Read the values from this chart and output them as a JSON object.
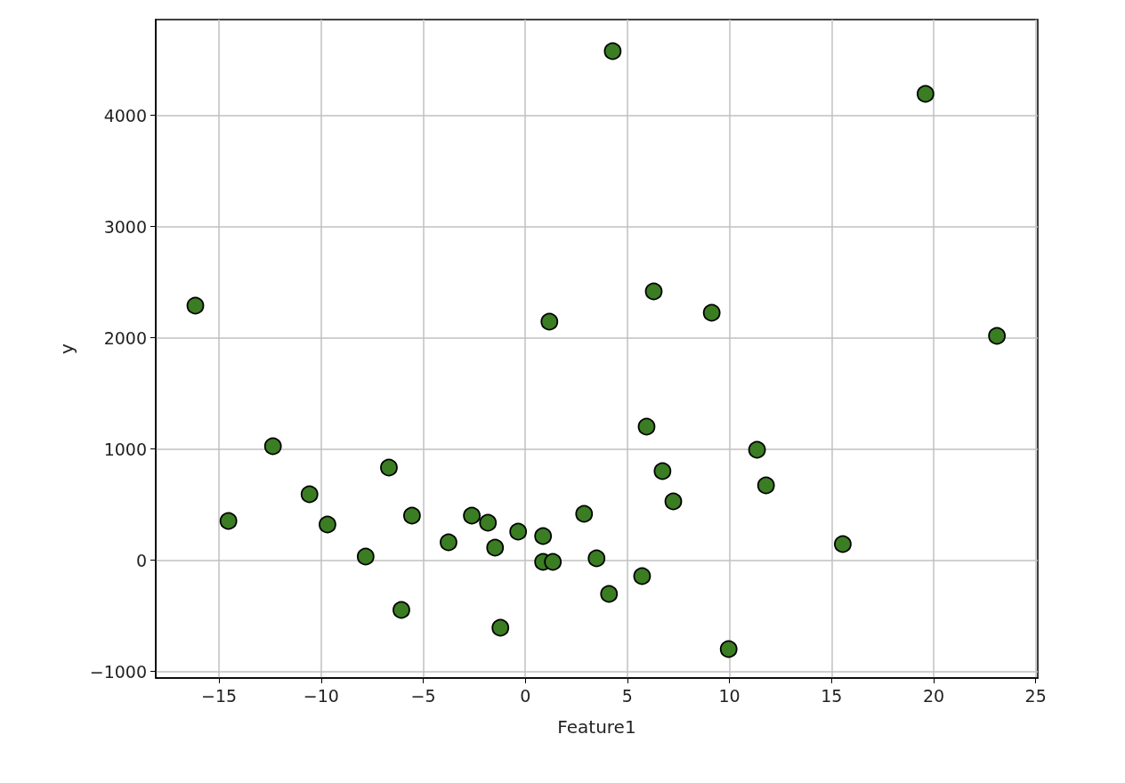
{
  "chart_data": {
    "type": "scatter",
    "xlabel": "Feature1",
    "ylabel": "y",
    "x": [
      -16.16,
      -14.54,
      -12.36,
      -10.57,
      -9.69,
      -7.82,
      -6.68,
      -6.07,
      -5.55,
      -3.76,
      -2.62,
      -1.83,
      -1.48,
      -1.22,
      -0.35,
      0.87,
      0.87,
      1.35,
      1.18,
      2.88,
      3.49,
      4.1,
      4.28,
      5.72,
      5.94,
      6.29,
      6.72,
      7.25,
      9.13,
      9.96,
      11.35,
      11.79,
      15.55,
      19.6,
      23.1
    ],
    "values": [
      2288,
      352,
      1024,
      592,
      320,
      32,
      832,
      -448,
      400,
      160,
      400,
      336,
      112,
      -608,
      256,
      216,
      -16,
      -16,
      2144,
      416,
      16,
      -304,
      4576,
      -144,
      1200,
      2416,
      800,
      528,
      2224,
      -800,
      992,
      672,
      144,
      4192,
      2016
    ],
    "color": "#3a7d22",
    "marker": "circle",
    "xlim": [
      -18.1,
      25.1
    ],
    "xticks": [
      -15,
      -10,
      -5,
      0,
      5,
      10,
      15,
      20,
      25
    ],
    "ylim": [
      -1060,
      4860
    ],
    "yticks": [
      -1000,
      0,
      1000,
      2000,
      3000,
      4000
    ],
    "grid": true
  }
}
